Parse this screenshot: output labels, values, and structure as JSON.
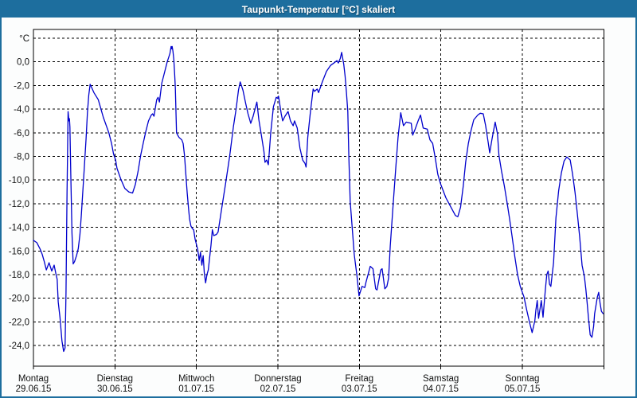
{
  "window": {
    "title": "Taupunkt-Temperatur [°C] skaliert"
  },
  "colors": {
    "titlebar": "#1d6e9e",
    "border": "#1d6e9e",
    "line": "#0000cc",
    "grid": "#000000",
    "plot_background": "#ffffff",
    "label_text": "#111111"
  },
  "chart_data": {
    "type": "line",
    "title": "Taupunkt-Temperatur [°C] skaliert",
    "grid": "dashed",
    "legend": "none",
    "y_axis": {
      "unit_label": "°C",
      "grid_top_value": 2,
      "range": [
        -25.7,
        2.8
      ],
      "ticks": [
        {
          "value": 0,
          "label": "0,0"
        },
        {
          "value": -2,
          "label": "-2,0"
        },
        {
          "value": -4,
          "label": "-4,0"
        },
        {
          "value": -6,
          "label": "-6,0"
        },
        {
          "value": -8,
          "label": "-8,0"
        },
        {
          "value": -10,
          "label": "-10,0"
        },
        {
          "value": -12,
          "label": "-12,0"
        },
        {
          "value": -14,
          "label": "-14,0"
        },
        {
          "value": -16,
          "label": "-16,0"
        },
        {
          "value": -18,
          "label": "-18,0"
        },
        {
          "value": -20,
          "label": "-20,0"
        },
        {
          "value": -22,
          "label": "-22,0"
        },
        {
          "value": -24,
          "label": "-24,0"
        }
      ]
    },
    "x_axis": {
      "total_hours": 168,
      "tick_hours": [
        0,
        24,
        48,
        72,
        96,
        120,
        144,
        168
      ],
      "days": [
        {
          "name": "Montag",
          "date": "29.06.15",
          "hour": 0
        },
        {
          "name": "Dienstag",
          "date": "30.06.15",
          "hour": 24
        },
        {
          "name": "Mittwoch",
          "date": "01.07.15",
          "hour": 48
        },
        {
          "name": "Donnerstag",
          "date": "02.07.15",
          "hour": 72
        },
        {
          "name": "Freitag",
          "date": "03.07.15",
          "hour": 96
        },
        {
          "name": "Samstag",
          "date": "04.07.15",
          "hour": 120
        },
        {
          "name": "Sonntag",
          "date": "05.07.15",
          "hour": 144
        }
      ]
    },
    "series": [
      {
        "name": "Taupunkt-Temperatur",
        "color": "#0000cc",
        "points": [
          [
            0,
            -15.1
          ],
          [
            1,
            -15.3
          ],
          [
            1.9,
            -15.8
          ],
          [
            2.6,
            -16.3
          ],
          [
            3.2,
            -16.9
          ],
          [
            3.8,
            -17.6
          ],
          [
            4.6,
            -17.0
          ],
          [
            5.4,
            -17.7
          ],
          [
            6.1,
            -17.2
          ],
          [
            6.6,
            -17.9
          ],
          [
            7.0,
            -18.4
          ],
          [
            7.3,
            -20.3
          ],
          [
            7.8,
            -21.6
          ],
          [
            8.4,
            -23.6
          ],
          [
            8.9,
            -24.5
          ],
          [
            9.3,
            -24.2
          ],
          [
            9.6,
            -19.5
          ],
          [
            9.9,
            -11.0
          ],
          [
            10.2,
            -4.2
          ],
          [
            10.45,
            -5.0
          ],
          [
            10.6,
            -4.8
          ],
          [
            10.75,
            -5.5
          ],
          [
            11.0,
            -9.5
          ],
          [
            11.35,
            -14.5
          ],
          [
            11.7,
            -17.1
          ],
          [
            12.1,
            -16.9
          ],
          [
            12.7,
            -16.4
          ],
          [
            13.2,
            -15.8
          ],
          [
            13.7,
            -14.6
          ],
          [
            14.1,
            -13.0
          ],
          [
            14.8,
            -9.8
          ],
          [
            15.5,
            -6.5
          ],
          [
            15.9,
            -4.3
          ],
          [
            16.3,
            -2.8
          ],
          [
            16.7,
            -1.9
          ],
          [
            17.2,
            -2.2
          ],
          [
            17.8,
            -2.6
          ],
          [
            19.1,
            -3.2
          ],
          [
            20.6,
            -4.7
          ],
          [
            22.2,
            -6.0
          ],
          [
            23.0,
            -6.9
          ],
          [
            23.6,
            -7.8
          ],
          [
            24.2,
            -8.3
          ],
          [
            24.6,
            -9.0
          ],
          [
            25.7,
            -9.9
          ],
          [
            26.9,
            -10.7
          ],
          [
            28.1,
            -11.0
          ],
          [
            29.2,
            -11.1
          ],
          [
            30.0,
            -10.4
          ],
          [
            30.8,
            -9.3
          ],
          [
            31.6,
            -7.9
          ],
          [
            32.4,
            -6.8
          ],
          [
            33.1,
            -5.9
          ],
          [
            33.9,
            -5.0
          ],
          [
            34.7,
            -4.5
          ],
          [
            35.1,
            -4.4
          ],
          [
            35.5,
            -4.6
          ],
          [
            36.3,
            -3.2
          ],
          [
            36.7,
            -3.0
          ],
          [
            37.1,
            -3.4
          ],
          [
            37.8,
            -1.8
          ],
          [
            38.6,
            -0.9
          ],
          [
            39.4,
            0.0
          ],
          [
            40.2,
            0.7
          ],
          [
            40.55,
            1.3
          ],
          [
            40.7,
            1.1
          ],
          [
            40.85,
            1.3
          ],
          [
            41.1,
            0.9
          ],
          [
            41.35,
            0.2
          ],
          [
            41.6,
            -1.1
          ],
          [
            41.8,
            -2.2
          ],
          [
            42.0,
            -4.5
          ],
          [
            42.15,
            -6.0
          ],
          [
            42.5,
            -6.2
          ],
          [
            42.9,
            -6.4
          ],
          [
            43.7,
            -6.6
          ],
          [
            44.1,
            -6.9
          ],
          [
            44.5,
            -7.9
          ],
          [
            44.9,
            -9.5
          ],
          [
            45.3,
            -11.1
          ],
          [
            45.7,
            -12.5
          ],
          [
            46.0,
            -13.3
          ],
          [
            46.4,
            -13.9
          ],
          [
            46.8,
            -14.1
          ],
          [
            47.2,
            -14.2
          ],
          [
            47.6,
            -15.0
          ],
          [
            48.4,
            -15.9
          ],
          [
            48.8,
            -16.8
          ],
          [
            49.2,
            -16.1
          ],
          [
            49.6,
            -17.2
          ],
          [
            50.0,
            -16.4
          ],
          [
            50.3,
            -17.8
          ],
          [
            50.7,
            -18.7
          ],
          [
            51.1,
            -18.0
          ],
          [
            51.5,
            -17.6
          ],
          [
            52.3,
            -15.5
          ],
          [
            52.7,
            -14.2
          ],
          [
            53.1,
            -14.7
          ],
          [
            53.9,
            -14.6
          ],
          [
            54.4,
            -14.4
          ],
          [
            55.4,
            -12.5
          ],
          [
            56.6,
            -10.3
          ],
          [
            57.8,
            -8.0
          ],
          [
            58.9,
            -5.5
          ],
          [
            59.7,
            -4.0
          ],
          [
            60.4,
            -2.4
          ],
          [
            60.9,
            -1.7
          ],
          [
            61.7,
            -2.4
          ],
          [
            62.5,
            -3.5
          ],
          [
            63.2,
            -4.4
          ],
          [
            64.0,
            -5.2
          ],
          [
            64.7,
            -4.6
          ],
          [
            65.8,
            -3.4
          ],
          [
            66.4,
            -4.9
          ],
          [
            67.2,
            -6.3
          ],
          [
            67.9,
            -7.6
          ],
          [
            68.2,
            -8.5
          ],
          [
            68.7,
            -8.3
          ],
          [
            69.2,
            -8.7
          ],
          [
            69.9,
            -6.0
          ],
          [
            70.7,
            -3.8
          ],
          [
            71.5,
            -3.0
          ],
          [
            72.0,
            -3.1
          ],
          [
            72.2,
            -2.9
          ],
          [
            73.0,
            -4.4
          ],
          [
            73.4,
            -5.0
          ],
          [
            74.1,
            -4.6
          ],
          [
            75.0,
            -4.2
          ],
          [
            75.7,
            -5.0
          ],
          [
            76.5,
            -5.4
          ],
          [
            76.9,
            -5.0
          ],
          [
            77.7,
            -5.6
          ],
          [
            78.5,
            -7.3
          ],
          [
            79.3,
            -8.3
          ],
          [
            80.0,
            -8.6
          ],
          [
            80.3,
            -8.9
          ],
          [
            80.8,
            -6.4
          ],
          [
            81.6,
            -4.2
          ],
          [
            82.4,
            -2.3
          ],
          [
            82.8,
            -2.5
          ],
          [
            83.6,
            -2.3
          ],
          [
            84.0,
            -2.6
          ],
          [
            85.1,
            -1.7
          ],
          [
            86.3,
            -0.8
          ],
          [
            87.5,
            -0.3
          ],
          [
            88.5,
            -0.1
          ],
          [
            89.4,
            0.1
          ],
          [
            89.8,
            -0.1
          ],
          [
            90.4,
            0.3
          ],
          [
            90.8,
            0.8
          ],
          [
            91.4,
            -0.2
          ],
          [
            91.8,
            -1.2
          ],
          [
            92.2,
            -2.6
          ],
          [
            92.6,
            -4.2
          ],
          [
            92.9,
            -8.0
          ],
          [
            93.3,
            -11.8
          ],
          [
            94.5,
            -16.3
          ],
          [
            95.3,
            -18.1
          ],
          [
            95.9,
            -19.8
          ],
          [
            96.8,
            -19.0
          ],
          [
            97.6,
            -19.1
          ],
          [
            98.0,
            -18.6
          ],
          [
            99.2,
            -17.3
          ],
          [
            100.0,
            -17.5
          ],
          [
            100.8,
            -19.2
          ],
          [
            101.2,
            -19.3
          ],
          [
            102.3,
            -17.6
          ],
          [
            102.7,
            -17.5
          ],
          [
            103.5,
            -19.2
          ],
          [
            104.1,
            -19.0
          ],
          [
            104.6,
            -18.3
          ],
          [
            105.1,
            -15.6
          ],
          [
            105.9,
            -12.3
          ],
          [
            106.7,
            -9.1
          ],
          [
            107.4,
            -6.4
          ],
          [
            108.2,
            -4.3
          ],
          [
            109.0,
            -5.4
          ],
          [
            109.8,
            -5.1
          ],
          [
            111.3,
            -5.2
          ],
          [
            111.7,
            -6.2
          ],
          [
            112.3,
            -5.8
          ],
          [
            113.3,
            -5.0
          ],
          [
            114.0,
            -4.5
          ],
          [
            114.8,
            -5.6
          ],
          [
            116.0,
            -5.7
          ],
          [
            116.8,
            -6.6
          ],
          [
            117.6,
            -6.9
          ],
          [
            118.4,
            -8.2
          ],
          [
            119.1,
            -9.5
          ],
          [
            119.9,
            -10.3
          ],
          [
            120.7,
            -10.9
          ],
          [
            121.5,
            -11.5
          ],
          [
            123.0,
            -12.3
          ],
          [
            124.3,
            -13.0
          ],
          [
            125.0,
            -13.1
          ],
          [
            125.8,
            -12.3
          ],
          [
            126.6,
            -10.5
          ],
          [
            127.3,
            -8.5
          ],
          [
            128.1,
            -6.9
          ],
          [
            128.9,
            -5.8
          ],
          [
            129.7,
            -4.9
          ],
          [
            130.9,
            -4.5
          ],
          [
            131.6,
            -4.35
          ],
          [
            132.5,
            -4.4
          ],
          [
            133.2,
            -5.4
          ],
          [
            134.0,
            -6.9
          ],
          [
            134.4,
            -7.7
          ],
          [
            135.1,
            -6.5
          ],
          [
            136.0,
            -5.1
          ],
          [
            136.7,
            -6.1
          ],
          [
            137.1,
            -7.9
          ],
          [
            137.9,
            -9.3
          ],
          [
            138.7,
            -10.5
          ],
          [
            139.5,
            -11.9
          ],
          [
            140.2,
            -13.2
          ],
          [
            141.0,
            -14.8
          ],
          [
            141.8,
            -16.5
          ],
          [
            142.6,
            -18.0
          ],
          [
            143.4,
            -19.0
          ],
          [
            144.5,
            -19.9
          ],
          [
            145.3,
            -21.0
          ],
          [
            146.1,
            -22.0
          ],
          [
            146.9,
            -22.9
          ],
          [
            147.7,
            -21.9
          ],
          [
            148.0,
            -21.0
          ],
          [
            148.4,
            -20.2
          ],
          [
            148.8,
            -21.7
          ],
          [
            149.6,
            -20.2
          ],
          [
            150.1,
            -21.6
          ],
          [
            150.8,
            -19.2
          ],
          [
            151.2,
            -18.0
          ],
          [
            151.6,
            -17.7
          ],
          [
            152.0,
            -18.8
          ],
          [
            152.4,
            -19.0
          ],
          [
            153.2,
            -17.0
          ],
          [
            153.9,
            -13.2
          ],
          [
            154.7,
            -10.9
          ],
          [
            155.5,
            -9.4
          ],
          [
            156.3,
            -8.4
          ],
          [
            157.1,
            -8.05
          ],
          [
            158.1,
            -8.3
          ],
          [
            158.8,
            -9.5
          ],
          [
            159.5,
            -11.0
          ],
          [
            160.2,
            -12.8
          ],
          [
            160.9,
            -14.8
          ],
          [
            161.6,
            -17.2
          ],
          [
            162.3,
            -18.2
          ],
          [
            162.7,
            -19.2
          ],
          [
            163.1,
            -20.4
          ],
          [
            163.5,
            -21.7
          ],
          [
            164.0,
            -23.1
          ],
          [
            164.5,
            -23.3
          ],
          [
            165.0,
            -22.4
          ],
          [
            165.3,
            -21.3
          ],
          [
            166.1,
            -19.9
          ],
          [
            166.5,
            -19.5
          ],
          [
            166.9,
            -20.4
          ],
          [
            167.3,
            -21.1
          ],
          [
            167.8,
            -21.3
          ]
        ]
      }
    ]
  }
}
